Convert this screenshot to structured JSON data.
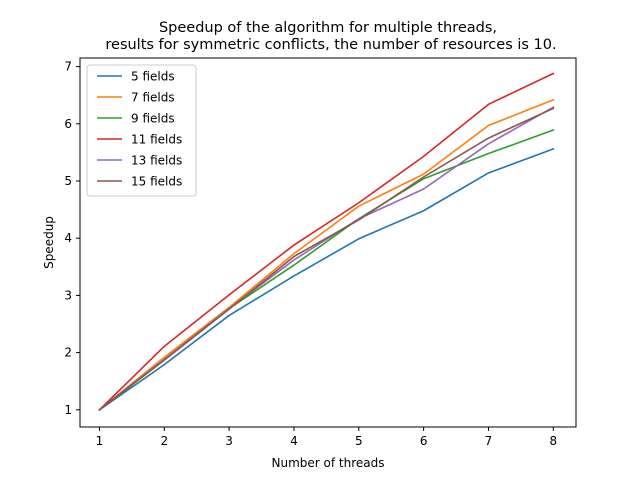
{
  "chart_data": {
    "type": "line",
    "title": [
      "Speedup of the algorithm for multiple threads,",
      "results for symmetric conflicts, the number of resources is 10."
    ],
    "xlabel": "Number of threads",
    "ylabel": "Speedup",
    "xlim": [
      0.7,
      8.35
    ],
    "ylim": [
      0.7,
      7.15
    ],
    "xticks": [
      1,
      2,
      3,
      4,
      5,
      6,
      7,
      8
    ],
    "yticks": [
      1,
      2,
      3,
      4,
      5,
      6,
      7
    ],
    "x": [
      1,
      2,
      3,
      4,
      5,
      6,
      7,
      8
    ],
    "grid": false,
    "legend_position": "upper-left",
    "series": [
      {
        "name": "5 fields",
        "color": "#1f77b4",
        "values": [
          1.0,
          1.79,
          2.65,
          3.34,
          3.99,
          4.48,
          5.14,
          5.56
        ]
      },
      {
        "name": "7 fields",
        "color": "#ff7f0e",
        "values": [
          1.0,
          1.92,
          2.79,
          3.73,
          4.56,
          5.12,
          5.97,
          6.42
        ]
      },
      {
        "name": "9 fields",
        "color": "#2ca02c",
        "values": [
          1.0,
          1.88,
          2.77,
          3.53,
          4.34,
          5.04,
          5.48,
          5.89
        ]
      },
      {
        "name": "11 fields",
        "color": "#d62728",
        "values": [
          1.0,
          2.11,
          3.01,
          3.88,
          4.62,
          5.43,
          6.34,
          6.88
        ]
      },
      {
        "name": "13 fields",
        "color": "#9467bd",
        "values": [
          1.0,
          1.88,
          2.77,
          3.62,
          4.34,
          4.86,
          5.65,
          6.29
        ]
      },
      {
        "name": "15 fields",
        "color": "#8c564b",
        "values": [
          1.0,
          1.87,
          2.76,
          3.68,
          4.32,
          5.07,
          5.75,
          6.27
        ]
      }
    ]
  }
}
